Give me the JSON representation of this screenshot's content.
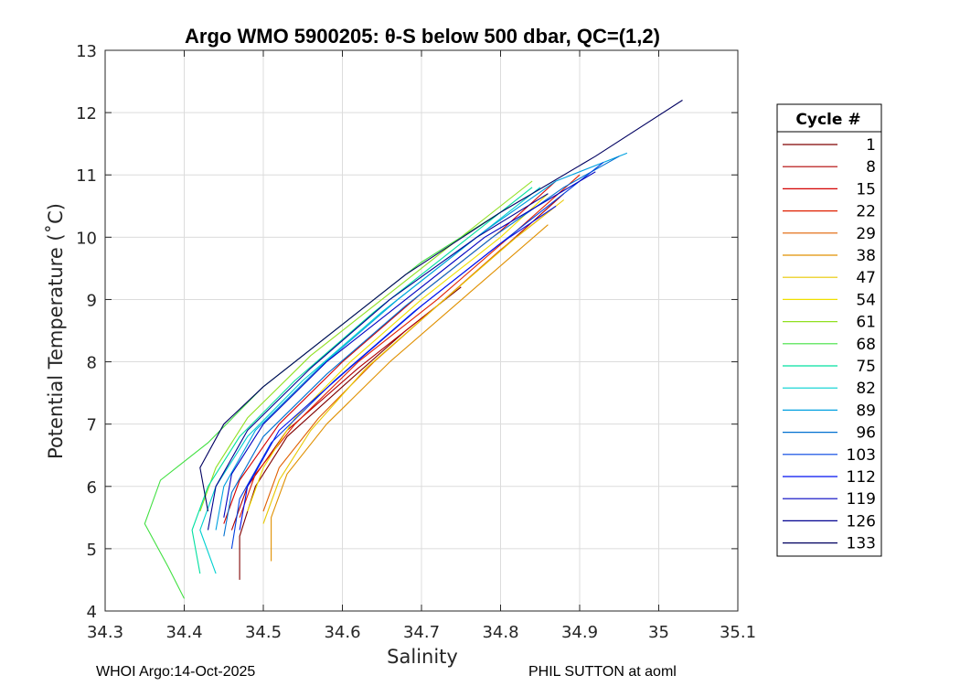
{
  "chart_data": {
    "type": "line",
    "title": "Argo WMO 5900205: θ-S below 500 dbar,  QC=(1,2)",
    "xlabel": "Salinity",
    "ylabel": "Potential Temperature (˚C)",
    "xlim": [
      34.3,
      35.1
    ],
    "ylim": [
      4,
      13
    ],
    "xticks": [
      "34.3",
      "34.4",
      "34.5",
      "34.6",
      "34.7",
      "34.8",
      "34.9",
      "35",
      "35.1"
    ],
    "yticks": [
      "4",
      "5",
      "6",
      "7",
      "8",
      "9",
      "10",
      "11",
      "12",
      "13"
    ],
    "grid": true,
    "legend": {
      "title": "Cycle #",
      "placement": "right-outside",
      "entries": [
        {
          "label": "1",
          "color": "#800000"
        },
        {
          "label": "8",
          "color": "#b00000"
        },
        {
          "label": "15",
          "color": "#d40000"
        },
        {
          "label": "22",
          "color": "#e02000"
        },
        {
          "label": "29",
          "color": "#e06000"
        },
        {
          "label": "38",
          "color": "#e09000"
        },
        {
          "label": "47",
          "color": "#e8c800"
        },
        {
          "label": "54",
          "color": "#f0e000"
        },
        {
          "label": "61",
          "color": "#90e020"
        },
        {
          "label": "68",
          "color": "#40e040"
        },
        {
          "label": "75",
          "color": "#00e0a0"
        },
        {
          "label": "82",
          "color": "#00d0d0"
        },
        {
          "label": "89",
          "color": "#00a0e0"
        },
        {
          "label": "96",
          "color": "#0070d0"
        },
        {
          "label": "103",
          "color": "#0040e0"
        },
        {
          "label": "112",
          "color": "#0010f0"
        },
        {
          "label": "119",
          "color": "#0000c0"
        },
        {
          "label": "126",
          "color": "#000090"
        },
        {
          "label": "133",
          "color": "#000060"
        }
      ]
    },
    "series": [
      {
        "name": "1",
        "color": "#800000",
        "points": [
          [
            34.47,
            4.5
          ],
          [
            34.47,
            5.2
          ],
          [
            34.49,
            6.0
          ],
          [
            34.53,
            6.8
          ],
          [
            34.6,
            7.6
          ],
          [
            34.68,
            8.5
          ],
          [
            34.75,
            9.2
          ]
        ]
      },
      {
        "name": "8",
        "color": "#b00000",
        "points": [
          [
            34.46,
            5.3
          ],
          [
            34.48,
            6.0
          ],
          [
            34.53,
            6.9
          ],
          [
            34.62,
            7.9
          ],
          [
            34.72,
            8.9
          ],
          [
            34.81,
            9.9
          ],
          [
            34.88,
            10.7
          ]
        ]
      },
      {
        "name": "15",
        "color": "#d40000",
        "points": [
          [
            34.45,
            5.4
          ],
          [
            34.47,
            6.1
          ],
          [
            34.52,
            7.0
          ],
          [
            34.6,
            8.0
          ],
          [
            34.7,
            9.1
          ],
          [
            34.8,
            10.1
          ],
          [
            34.87,
            10.9
          ]
        ]
      },
      {
        "name": "22",
        "color": "#e02000",
        "points": [
          [
            34.47,
            5.5
          ],
          [
            34.49,
            6.2
          ],
          [
            34.54,
            7.0
          ],
          [
            34.62,
            8.0
          ],
          [
            34.72,
            9.0
          ],
          [
            34.82,
            10.1
          ],
          [
            34.9,
            11.0
          ]
        ]
      },
      {
        "name": "29",
        "color": "#e06000",
        "points": [
          [
            34.5,
            5.6
          ],
          [
            34.52,
            6.3
          ],
          [
            34.57,
            7.1
          ],
          [
            34.64,
            8.0
          ],
          [
            34.72,
            8.9
          ],
          [
            34.8,
            9.8
          ],
          [
            34.87,
            10.5
          ]
        ]
      },
      {
        "name": "38",
        "color": "#e09000",
        "points": [
          [
            34.51,
            4.8
          ],
          [
            34.51,
            5.5
          ],
          [
            34.53,
            6.2
          ],
          [
            34.58,
            7.0
          ],
          [
            34.66,
            8.0
          ],
          [
            34.76,
            9.1
          ],
          [
            34.86,
            10.2
          ]
        ]
      },
      {
        "name": "47",
        "color": "#e8c800",
        "points": [
          [
            34.5,
            5.4
          ],
          [
            34.52,
            6.1
          ],
          [
            34.56,
            6.9
          ],
          [
            34.63,
            7.9
          ],
          [
            34.72,
            8.9
          ],
          [
            34.82,
            10.0
          ],
          [
            34.88,
            10.6
          ]
        ]
      },
      {
        "name": "54",
        "color": "#f0e000",
        "points": [
          [
            34.48,
            5.6
          ],
          [
            34.5,
            6.3
          ],
          [
            34.54,
            7.1
          ],
          [
            34.61,
            8.0
          ],
          [
            34.7,
            9.0
          ],
          [
            34.8,
            10.0
          ],
          [
            34.86,
            10.7
          ]
        ]
      },
      {
        "name": "61",
        "color": "#90e020",
        "points": [
          [
            34.42,
            5.6
          ],
          [
            34.44,
            6.3
          ],
          [
            34.48,
            7.1
          ],
          [
            34.56,
            8.1
          ],
          [
            34.66,
            9.1
          ],
          [
            34.76,
            10.1
          ],
          [
            34.84,
            10.9
          ]
        ]
      },
      {
        "name": "68",
        "color": "#40e040",
        "points": [
          [
            34.4,
            4.2
          ],
          [
            34.38,
            4.7
          ],
          [
            34.35,
            5.4
          ],
          [
            34.37,
            6.1
          ],
          [
            34.43,
            6.7
          ],
          [
            34.5,
            7.6
          ],
          [
            34.6,
            8.6
          ],
          [
            34.7,
            9.6
          ],
          [
            34.8,
            10.4
          ]
        ]
      },
      {
        "name": "75",
        "color": "#00e0a0",
        "points": [
          [
            34.42,
            4.6
          ],
          [
            34.41,
            5.3
          ],
          [
            34.43,
            6.0
          ],
          [
            34.47,
            6.8
          ],
          [
            34.54,
            7.7
          ],
          [
            34.64,
            8.8
          ],
          [
            34.75,
            9.9
          ],
          [
            34.84,
            10.8
          ]
        ]
      },
      {
        "name": "82",
        "color": "#00d0d0",
        "points": [
          [
            34.44,
            4.6
          ],
          [
            34.42,
            5.3
          ],
          [
            34.44,
            6.0
          ],
          [
            34.48,
            6.8
          ],
          [
            34.55,
            7.7
          ],
          [
            34.65,
            8.8
          ],
          [
            34.76,
            9.9
          ],
          [
            34.85,
            10.8
          ]
        ]
      },
      {
        "name": "89",
        "color": "#00a0e0",
        "points": [
          [
            34.44,
            5.3
          ],
          [
            34.45,
            6.0
          ],
          [
            34.49,
            6.9
          ],
          [
            34.57,
            7.9
          ],
          [
            34.67,
            9.0
          ],
          [
            34.78,
            10.1
          ],
          [
            34.87,
            10.9
          ],
          [
            34.96,
            11.35
          ]
        ]
      },
      {
        "name": "96",
        "color": "#0070d0",
        "points": [
          [
            34.45,
            5.2
          ],
          [
            34.46,
            5.9
          ],
          [
            34.5,
            6.8
          ],
          [
            34.58,
            7.8
          ],
          [
            34.68,
            8.9
          ],
          [
            34.79,
            10.0
          ],
          [
            34.88,
            10.8
          ],
          [
            34.95,
            11.3
          ]
        ]
      },
      {
        "name": "103",
        "color": "#0040e0",
        "points": [
          [
            34.46,
            5.0
          ],
          [
            34.47,
            5.8
          ],
          [
            34.51,
            6.7
          ],
          [
            34.59,
            7.7
          ],
          [
            34.69,
            8.8
          ],
          [
            34.8,
            9.9
          ],
          [
            34.89,
            10.8
          ],
          [
            34.93,
            11.2
          ]
        ]
      },
      {
        "name": "112",
        "color": "#0010f0",
        "points": [
          [
            34.47,
            5.3
          ],
          [
            34.48,
            6.0
          ],
          [
            34.52,
            6.9
          ],
          [
            34.6,
            7.8
          ],
          [
            34.7,
            8.9
          ],
          [
            34.8,
            9.9
          ],
          [
            34.87,
            10.5
          ]
        ]
      },
      {
        "name": "119",
        "color": "#0000c0",
        "points": [
          [
            34.45,
            5.5
          ],
          [
            34.46,
            6.2
          ],
          [
            34.5,
            7.0
          ],
          [
            34.58,
            8.0
          ],
          [
            34.68,
            9.0
          ],
          [
            34.78,
            10.0
          ],
          [
            34.86,
            10.6
          ],
          [
            34.92,
            11.05
          ]
        ]
      },
      {
        "name": "126",
        "color": "#000090",
        "points": [
          [
            34.43,
            5.3
          ],
          [
            34.44,
            6.0
          ],
          [
            34.48,
            6.9
          ],
          [
            34.56,
            7.9
          ],
          [
            34.66,
            9.0
          ],
          [
            34.77,
            10.0
          ],
          [
            34.86,
            10.7
          ]
        ]
      },
      {
        "name": "133",
        "color": "#000060",
        "points": [
          [
            34.43,
            5.6
          ],
          [
            34.42,
            6.3
          ],
          [
            34.45,
            7.0
          ],
          [
            34.5,
            7.6
          ],
          [
            34.58,
            8.4
          ],
          [
            34.68,
            9.4
          ],
          [
            34.8,
            10.4
          ],
          [
            34.92,
            11.3
          ],
          [
            35.03,
            12.2
          ]
        ]
      }
    ]
  },
  "footer": {
    "left": "WHOI Argo:14-Oct-2025",
    "right": "PHIL SUTTON at aoml"
  }
}
